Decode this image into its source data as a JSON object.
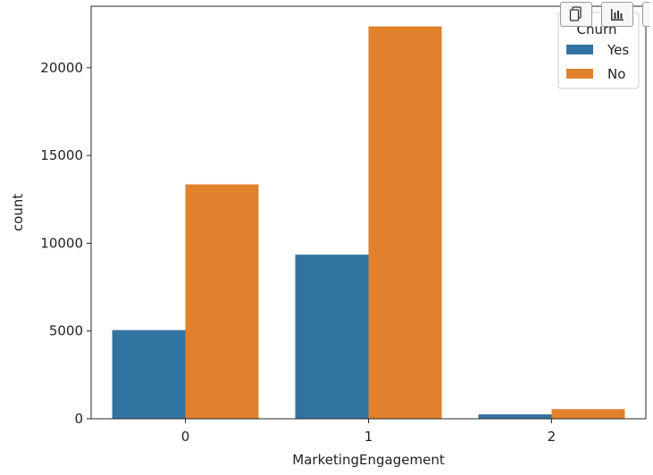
{
  "toolbar": {
    "buttons": [
      {
        "icon": "copy-icon"
      },
      {
        "icon": "bar-chart-icon"
      },
      {
        "icon": "overflow-icon"
      }
    ]
  },
  "chart_data": {
    "type": "bar",
    "xlabel": "MarketingEngagement",
    "ylabel": "count",
    "categories": [
      "0",
      "1",
      "2"
    ],
    "ylim": [
      0,
      23500
    ],
    "yticks": [
      0,
      5000,
      10000,
      15000,
      20000
    ],
    "series": [
      {
        "name": "Yes",
        "color": "#3274a1",
        "values": [
          5050,
          9350,
          250
        ]
      },
      {
        "name": "No",
        "color": "#e1812c",
        "values": [
          13350,
          22350,
          550
        ]
      }
    ],
    "legend": {
      "title": "Churn",
      "placement": "top-right"
    },
    "grid": false
  }
}
